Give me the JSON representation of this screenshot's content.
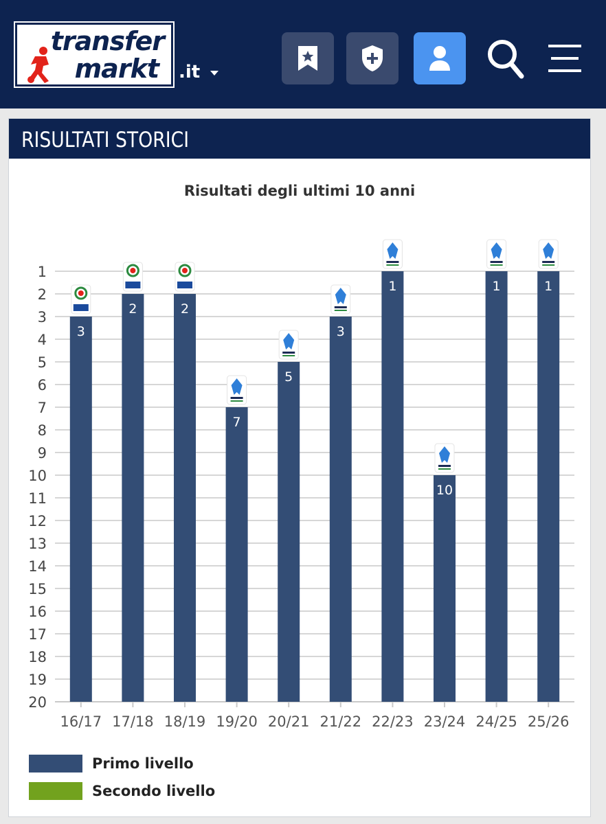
{
  "header": {
    "logo_line1": "transfer",
    "logo_line2": "markt",
    "domain": ".it",
    "icons": [
      "bookmark-star-icon",
      "shield-plus-icon",
      "user-icon",
      "search-icon",
      "hamburger-menu-icon"
    ]
  },
  "section": {
    "title": "RISULTATI STORICI"
  },
  "chart_data": {
    "type": "bar",
    "title": "Risultati degli ultimi 10 anni",
    "categories": [
      "16/17",
      "17/18",
      "18/19",
      "19/20",
      "20/21",
      "21/22",
      "22/23",
      "23/24",
      "24/25",
      "25/26"
    ],
    "series": [
      {
        "name": "Primo livello",
        "values": [
          3,
          2,
          2,
          7,
          5,
          3,
          1,
          10,
          1,
          1
        ],
        "color": "#334d75"
      }
    ],
    "bar_labels": [
      "3",
      "2",
      "2",
      "7",
      "5",
      "3",
      "1",
      "10",
      "1",
      "1"
    ],
    "league_badges": [
      "Serie A TIM (old)",
      "Serie A TIM (old)",
      "Serie A TIM (old)",
      "Serie A",
      "Serie A",
      "Serie A TIM",
      "Serie A",
      "Serie A",
      "Serie A",
      "Serie A"
    ],
    "y_ticks": [
      "1",
      "2",
      "3",
      "4",
      "5",
      "6",
      "7",
      "8",
      "9",
      "10",
      "11",
      "12",
      "13",
      "14",
      "15",
      "16",
      "17",
      "18",
      "19",
      "20"
    ],
    "ylim": [
      1,
      20
    ],
    "y_reversed": true,
    "grid": true,
    "legend": [
      {
        "label": "Primo livello",
        "color": "#334d75"
      },
      {
        "label": "Secondo livello",
        "color": "#72a21e"
      }
    ],
    "legend_position": "bottom-left"
  }
}
